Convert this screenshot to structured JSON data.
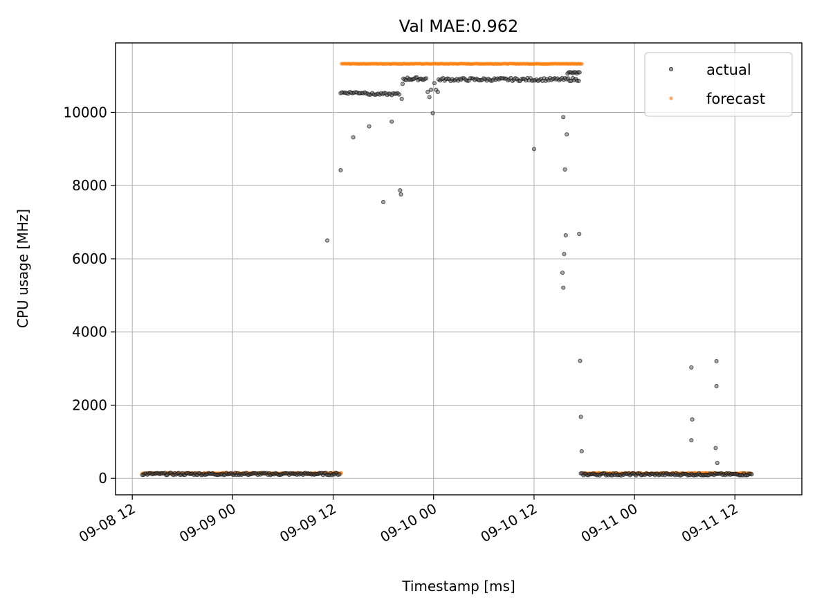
{
  "chart_data": {
    "type": "scatter",
    "title": "Val MAE:0.962",
    "xlabel": "Timestamp [ms]",
    "ylabel": "CPU usage [MHz]",
    "x_unit": "hours",
    "xlim": [
      -2,
      80
    ],
    "ylim": [
      -450,
      11900
    ],
    "yticks": [
      0,
      2000,
      4000,
      6000,
      8000,
      10000
    ],
    "xticks": [
      {
        "value": 0,
        "label": "09-08 12"
      },
      {
        "value": 12,
        "label": "09-09 00"
      },
      {
        "value": 24,
        "label": "09-09 12"
      },
      {
        "value": 36,
        "label": "09-10 00"
      },
      {
        "value": 48,
        "label": "09-10 12"
      },
      {
        "value": 60,
        "label": "09-11 00"
      },
      {
        "value": 72,
        "label": "09-11 12"
      }
    ],
    "grid": true,
    "legend_position": "top-right",
    "colors": {
      "actual": "#333333",
      "forecast": "#ff7f0e"
    },
    "series": [
      {
        "name": "actual",
        "segments": [
          {
            "x_start": 1.2,
            "x_end": 24.8,
            "step": 0.15,
            "y": 120,
            "jitter": 30
          }
        ],
        "points": [
          [
            23.3,
            6500
          ],
          [
            24.9,
            8420
          ],
          [
            26.4,
            9320
          ],
          [
            28.3,
            9620
          ],
          [
            30.0,
            7550
          ],
          [
            31.0,
            9750
          ],
          [
            32.0,
            7870
          ],
          [
            32.1,
            7760
          ],
          [
            32.2,
            10370
          ],
          [
            32.3,
            10780
          ],
          [
            35.3,
            10560
          ],
          [
            35.5,
            10420
          ],
          [
            35.7,
            10620
          ],
          [
            35.9,
            9980
          ],
          [
            36.1,
            10800
          ],
          [
            36.3,
            10620
          ],
          [
            36.5,
            10560
          ],
          [
            48.0,
            9000
          ],
          [
            51.5,
            9870
          ],
          [
            51.7,
            8440
          ],
          [
            51.9,
            9400
          ],
          [
            51.4,
            5620
          ],
          [
            51.6,
            6130
          ],
          [
            51.5,
            5210
          ],
          [
            51.8,
            6640
          ],
          [
            53.4,
            6680
          ],
          [
            53.5,
            3210
          ],
          [
            53.6,
            1680
          ],
          [
            53.7,
            740
          ],
          [
            66.8,
            3030
          ],
          [
            66.9,
            1610
          ],
          [
            66.8,
            1040
          ],
          [
            69.8,
            3200
          ],
          [
            69.8,
            2520
          ],
          [
            69.7,
            830
          ],
          [
            69.9,
            420
          ]
        ],
        "clusters": [
          {
            "x_start": 24.9,
            "x_end": 28.2,
            "step": 0.18,
            "y": 10540,
            "jitter": 30
          },
          {
            "x_start": 28.3,
            "x_end": 32.0,
            "step": 0.18,
            "y": 10500,
            "jitter": 30
          },
          {
            "x_start": 32.4,
            "x_end": 35.2,
            "step": 0.16,
            "y": 10920,
            "jitter": 40
          },
          {
            "x_start": 36.6,
            "x_end": 53.4,
            "step": 0.18,
            "y": 10900,
            "jitter": 40
          },
          {
            "x_start": 52.0,
            "x_end": 53.5,
            "step": 0.16,
            "y": 11080,
            "jitter": 30
          },
          {
            "x_start": 53.6,
            "x_end": 74.0,
            "step": 0.15,
            "y": 110,
            "jitter": 30
          }
        ]
      },
      {
        "name": "forecast",
        "segments": [
          {
            "x_start": 1.2,
            "x_end": 25.0,
            "step": 0.13,
            "y": 140,
            "jitter": 15
          },
          {
            "x_start": 25.0,
            "x_end": 53.8,
            "step": 0.13,
            "y": 11330,
            "jitter": 8
          },
          {
            "x_start": 53.8,
            "x_end": 74.0,
            "step": 0.13,
            "y": 140,
            "jitter": 15
          }
        ]
      }
    ]
  }
}
